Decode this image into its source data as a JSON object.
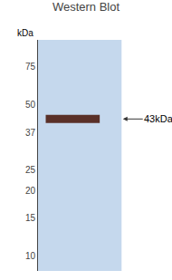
{
  "chart_data": {
    "type": "blot",
    "title": "Western Blot",
    "y_label": "kDa",
    "values": [
      43
    ],
    "value_labels": [
      "43kDa"
    ],
    "data_labels": true,
    "color": "#5a3028",
    "log": "y",
    "grid": false,
    "ylim": [
      8.5,
      100
    ],
    "yticks": [
      75,
      50,
      37,
      25,
      20,
      15,
      10
    ]
  }
}
